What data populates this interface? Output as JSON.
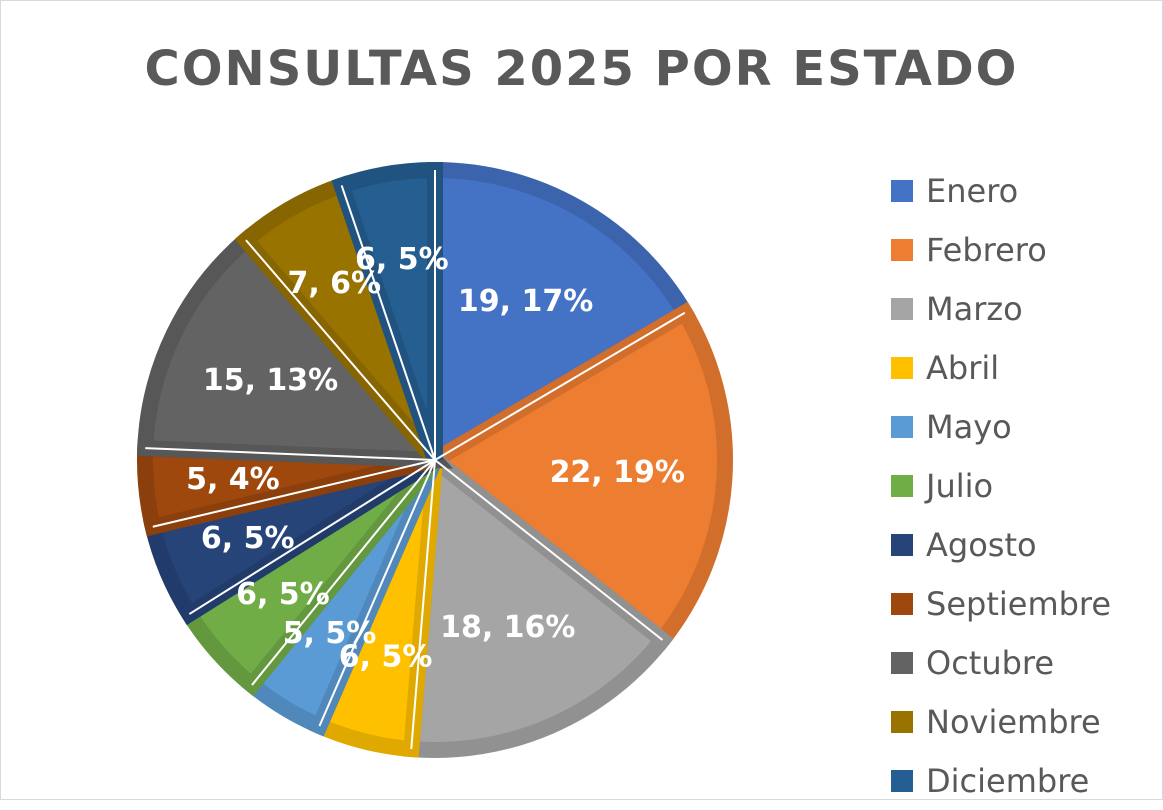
{
  "chart_data": {
    "type": "pie",
    "title": "CONSULTAS 2025 POR ESTADO",
    "legend_position": "right",
    "slices": [
      {
        "name": "Enero",
        "value": 19,
        "label": "19, 17%",
        "color": "#4472C4"
      },
      {
        "name": "Febrero",
        "value": 22,
        "label": "22, 19%",
        "color": "#ED7D31"
      },
      {
        "name": "Marzo",
        "value": 18,
        "label": "18, 16%",
        "color": "#A5A5A5"
      },
      {
        "name": "Abril",
        "value": 6,
        "label": "6, 5%",
        "color": "#FFC000"
      },
      {
        "name": "Mayo",
        "value": 5,
        "label": "5, 5%",
        "color": "#5B9BD5"
      },
      {
        "name": "Julio",
        "value": 6,
        "label": "6, 5%",
        "color": "#70AD47"
      },
      {
        "name": "Agosto",
        "value": 6,
        "label": "6, 5%",
        "color": "#264478"
      },
      {
        "name": "Septiembre",
        "value": 5,
        "label": "5, 4%",
        "color": "#9E480E"
      },
      {
        "name": "Octubre",
        "value": 15,
        "label": "15, 13%",
        "color": "#636363"
      },
      {
        "name": "Noviembre",
        "value": 7,
        "label": "7, 6%",
        "color": "#997300"
      },
      {
        "name": "Diciembre",
        "value": 6,
        "label": "6, 5%",
        "color": "#255E91"
      }
    ]
  }
}
